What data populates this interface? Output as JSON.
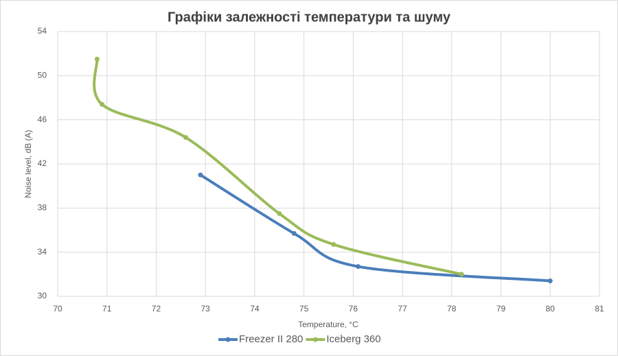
{
  "chart_data": {
    "type": "scatter",
    "smooth": true,
    "title": "Графіки залежності температури та шуму",
    "x_label": "Temperature, °C",
    "y_label": "Noise level, dB (A)",
    "xlim": [
      70,
      81
    ],
    "xticks": [
      70,
      71,
      72,
      73,
      74,
      75,
      76,
      77,
      78,
      79,
      80,
      81
    ],
    "ylim": [
      30,
      54
    ],
    "yticks": [
      30,
      34,
      38,
      42,
      46,
      50,
      54
    ],
    "grid": true,
    "legend": "bottom",
    "series": [
      {
        "name": "Freezer II 280",
        "color": "#4a7ebb",
        "x": [
          72.9,
          74.8,
          76.1,
          80.0
        ],
        "values": [
          41.0,
          35.7,
          32.7,
          31.4
        ]
      },
      {
        "name": "Iceberg 360",
        "color": "#9bbb59",
        "x": [
          70.8,
          70.9,
          72.6,
          74.5,
          75.6,
          78.2
        ],
        "values": [
          51.5,
          47.4,
          44.4,
          37.5,
          34.7,
          32.0
        ]
      }
    ]
  }
}
